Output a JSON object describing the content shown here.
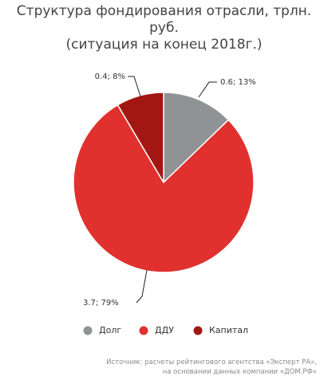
{
  "chart_data": {
    "type": "pie",
    "title": "Структура фондирования отрасли, трлн. руб.",
    "subtitle": "(ситуация на конец 2018г.)",
    "slices": [
      {
        "name": "Долг",
        "value": 0.6,
        "percent": 13,
        "label": "0.6; 13%",
        "color": "#8f9396"
      },
      {
        "name": "ДДУ",
        "value": 3.7,
        "percent": 79,
        "label": "3.7; 79%",
        "color": "#e0312f"
      },
      {
        "name": "Капитал",
        "value": 0.4,
        "percent": 8,
        "label": "0.4; 8%",
        "color": "#a31713"
      }
    ],
    "legend_position": "bottom"
  },
  "source": {
    "line1": "Источник: расчеты рейтингового агентства «Эксперт РА»,",
    "line2": "на основании данных компании «ДОМ.РФ»"
  }
}
